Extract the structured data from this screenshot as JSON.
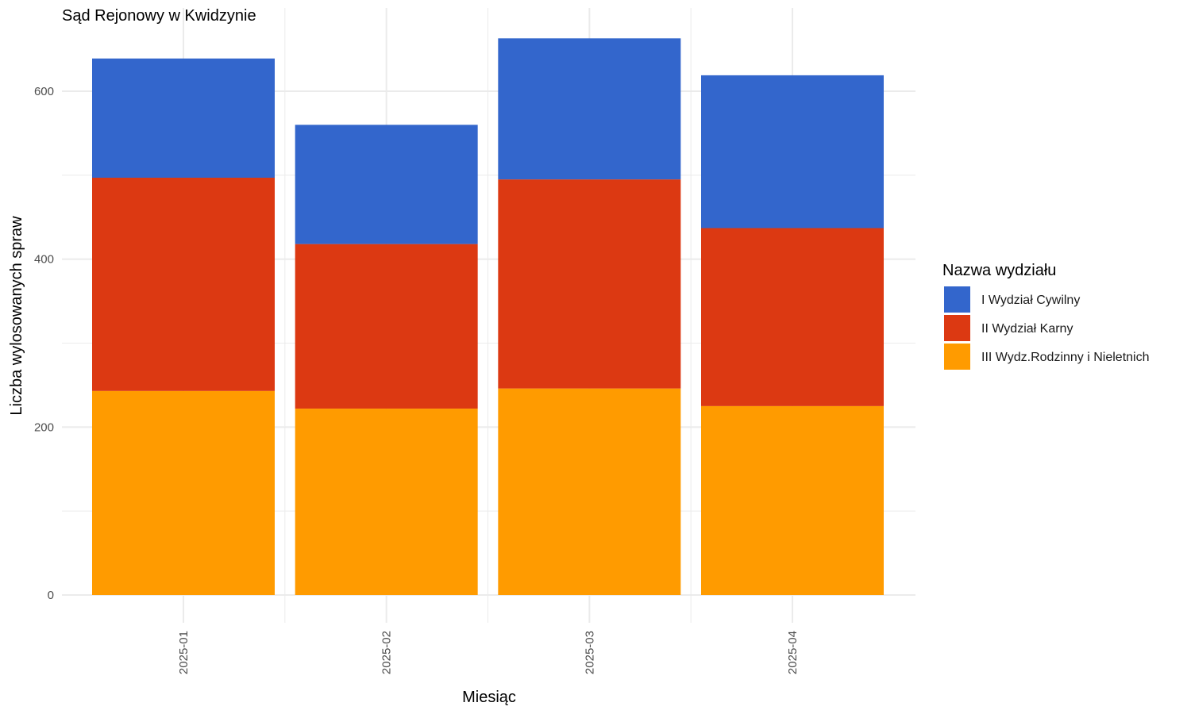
{
  "chart_data": {
    "type": "bar",
    "stacked": true,
    "title": "Sąd Rejonowy w Kwidzynie",
    "xlabel": "Miesiąc",
    "ylabel": "Liczba wylosowanych spraw",
    "categories": [
      "2025-01",
      "2025-02",
      "2025-03",
      "2025-04"
    ],
    "ylim": [
      0,
      700
    ],
    "yticks": [
      0,
      200,
      400,
      600
    ],
    "grid": true,
    "legend": {
      "title": "Nazwa wydziału",
      "position": "right"
    },
    "series": [
      {
        "name": "III Wydz.Rodzinny i Nieletnich",
        "color": "#FF9B00",
        "values": [
          243,
          222,
          246,
          225
        ]
      },
      {
        "name": "II Wydział Karny",
        "color": "#DC3912",
        "values": [
          254,
          196,
          249,
          212
        ]
      },
      {
        "name": "I Wydział Cywilny",
        "color": "#3366CC",
        "values": [
          142,
          142,
          168,
          182
        ]
      }
    ],
    "legend_order": [
      "I Wydział Cywilny",
      "II Wydział Karny",
      "III Wydz.Rodzinny i Nieletnich"
    ]
  }
}
